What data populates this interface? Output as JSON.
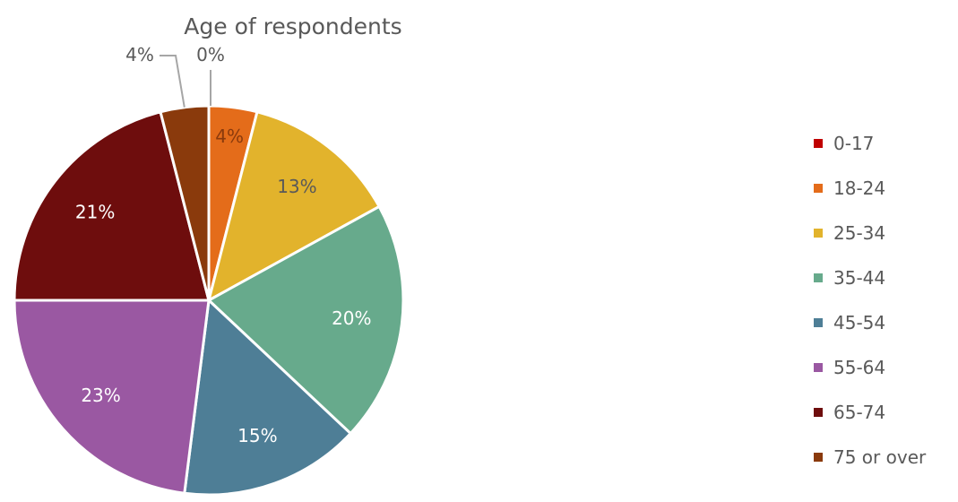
{
  "chart_data": {
    "type": "pie",
    "title": "Age of respondents",
    "categories": [
      "0-17",
      "18-24",
      "25-34",
      "35-44",
      "45-54",
      "55-64",
      "65-74",
      "75 or over"
    ],
    "values": [
      0,
      4,
      13,
      20,
      15,
      23,
      21,
      4
    ],
    "data_labels": [
      "0%",
      "4%",
      "13%",
      "20%",
      "15%",
      "23%",
      "21%",
      "4%"
    ],
    "label_colors": [
      "#595959",
      "#8a3a0c",
      "#595959",
      "#ffffff",
      "#ffffff",
      "#ffffff",
      "#ffffff",
      "#595959"
    ],
    "colors": [
      "#c00000",
      "#e46c1a",
      "#e2b32c",
      "#67aa8c",
      "#4e7e96",
      "#9a58a2",
      "#6e0d0d",
      "#8a3a0c"
    ],
    "legend_position": "right",
    "start_angle": "12 o'clock, clockwise"
  }
}
